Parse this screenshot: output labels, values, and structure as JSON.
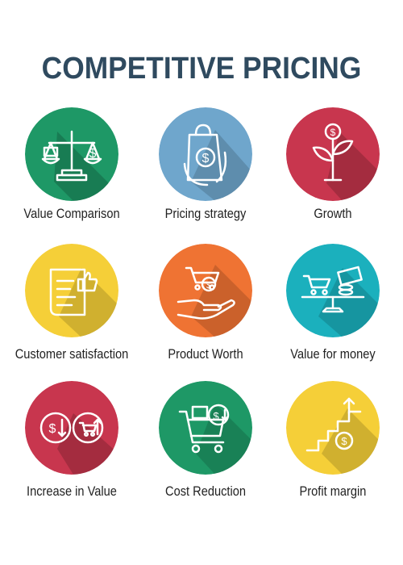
{
  "title": "COMPETITIVE PRICING",
  "items": [
    {
      "label": "Value Comparison",
      "color": "#1e9866",
      "icon": "balance-scale-icon"
    },
    {
      "label": "Pricing strategy",
      "color": "#6fa6cc",
      "icon": "shopping-bag-dollar-icon"
    },
    {
      "label": "Growth",
      "color": "#c8364e",
      "icon": "money-plant-icon"
    },
    {
      "label": "Customer satisfaction",
      "color": "#f5cf38",
      "icon": "receipt-thumbs-up-icon"
    },
    {
      "label": "Product Worth",
      "color": "#ef7333",
      "icon": "hand-cart-icon"
    },
    {
      "label": "Value for money",
      "color": "#1bb0bd",
      "icon": "cart-vs-cash-scale-icon"
    },
    {
      "label": "Increase in Value",
      "color": "#c8364e",
      "icon": "dollar-cart-arrows-icon"
    },
    {
      "label": "Cost Reduction",
      "color": "#1e9866",
      "icon": "cart-dollar-down-icon"
    },
    {
      "label": "Profit margin",
      "color": "#f5cf38",
      "icon": "stairs-dollar-icon"
    }
  ]
}
